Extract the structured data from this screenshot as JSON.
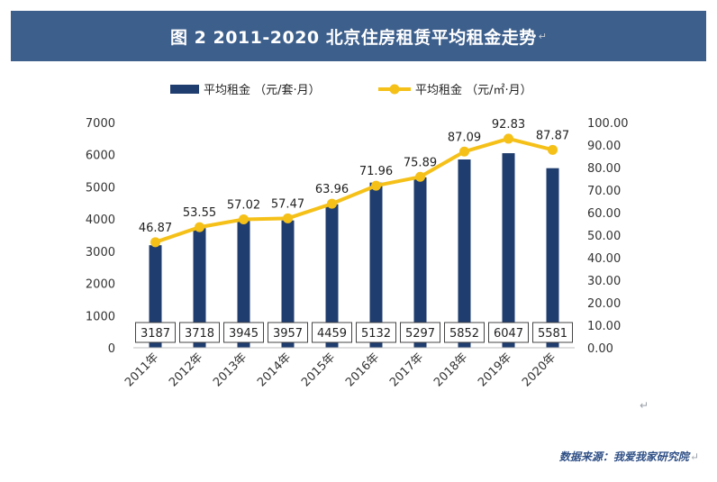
{
  "title": "图 2    2011-2020 北京住房租赁平均租金走势",
  "return_mark": "↵",
  "source": "数据来源：我爱我家研究院",
  "chart_data": {
    "type": "bar+line",
    "categories": [
      "2011年",
      "2012年",
      "2013年",
      "2014年",
      "2015年",
      "2016年",
      "2017年",
      "2018年",
      "2019年",
      "2020年"
    ],
    "series": [
      {
        "name": "平均租金 （元/套·月）",
        "type": "bar",
        "axis": "left",
        "values": [
          3187,
          3718,
          3945,
          3957,
          4459,
          5132,
          5297,
          5852,
          6047,
          5581
        ]
      },
      {
        "name": "平均租金 （元/㎡·月）",
        "type": "line",
        "axis": "right",
        "values": [
          46.87,
          53.55,
          57.02,
          57.47,
          63.96,
          71.96,
          75.89,
          87.09,
          92.83,
          87.87
        ]
      }
    ],
    "left_axis": {
      "min": 0,
      "max": 7000,
      "ticks": [
        "0",
        "1000",
        "2000",
        "3000",
        "4000",
        "5000",
        "6000",
        "7000"
      ]
    },
    "right_axis": {
      "min": 0,
      "max": 100,
      "ticks": [
        "0.00",
        "10.00",
        "20.00",
        "30.00",
        "40.00",
        "50.00",
        "60.00",
        "70.00",
        "80.00",
        "90.00",
        "100.00"
      ]
    },
    "legend_position": "top-center",
    "grid": false,
    "colors": {
      "bar": "#1f3d6e",
      "line": "#f5c018",
      "marker": "#f5c018"
    }
  }
}
